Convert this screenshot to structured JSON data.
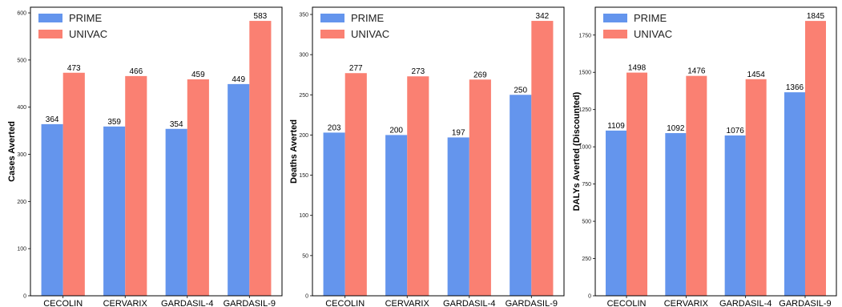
{
  "colors": {
    "PRIME": "#6495ed",
    "UNIVAC": "#fa8072"
  },
  "chart_data": [
    {
      "type": "bar",
      "categories": [
        "CECOLIN",
        "CERVARIX",
        "GARDASIL-4",
        "GARDASIL-9"
      ],
      "series": [
        {
          "name": "PRIME",
          "values": [
            364,
            359,
            354,
            449
          ]
        },
        {
          "name": "UNIVAC",
          "values": [
            473,
            466,
            459,
            583
          ]
        }
      ],
      "ylabel": "Cases Averted",
      "xlabel": "",
      "ylim": [
        0,
        612
      ],
      "yticks": [
        0,
        100,
        200,
        300,
        400,
        500,
        600
      ],
      "legend": "top-left",
      "grid": false
    },
    {
      "type": "bar",
      "categories": [
        "CECOLIN",
        "CERVARIX",
        "GARDASIL-4",
        "GARDASIL-9"
      ],
      "series": [
        {
          "name": "PRIME",
          "values": [
            203,
            200,
            197,
            250
          ]
        },
        {
          "name": "UNIVAC",
          "values": [
            277,
            273,
            269,
            342
          ]
        }
      ],
      "ylabel": "Deaths Averted",
      "xlabel": "",
      "ylim": [
        0,
        359
      ],
      "yticks": [
        0,
        50,
        100,
        150,
        200,
        250,
        300,
        350
      ],
      "legend": "top-left",
      "grid": false
    },
    {
      "type": "bar",
      "categories": [
        "CECOLIN",
        "CERVARIX",
        "GARDASIL-4",
        "GARDASIL-9"
      ],
      "series": [
        {
          "name": "PRIME",
          "values": [
            1109,
            1092,
            1076,
            1366
          ]
        },
        {
          "name": "UNIVAC",
          "values": [
            1498,
            1476,
            1454,
            1845
          ]
        }
      ],
      "ylabel": "DALYs Averted (Discounted)",
      "xlabel": "",
      "ylim": [
        0,
        1937
      ],
      "yticks": [
        0,
        250,
        500,
        750,
        1000,
        1250,
        1500,
        1750
      ],
      "legend": "top-left",
      "grid": false
    }
  ]
}
